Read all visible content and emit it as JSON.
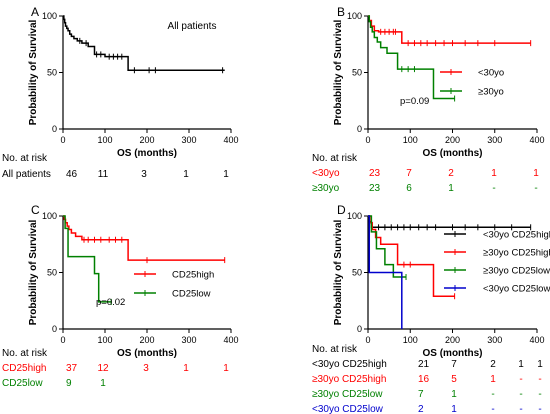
{
  "chart_data": [
    {
      "type": "line",
      "panel_label": "A",
      "title": "All patients",
      "xlabel": "OS (months)",
      "ylabel": "Probability of Survival",
      "xlim": [
        0,
        400
      ],
      "ylim": [
        0,
        100
      ],
      "xticks": [
        0,
        100,
        200,
        300,
        400
      ],
      "yticks": [
        0,
        50,
        100
      ],
      "legend_position": "none",
      "series": [
        {
          "name": "",
          "color": "#000000",
          "x": [
            0,
            2,
            4,
            6,
            9,
            12,
            16,
            20,
            26,
            34,
            45,
            60,
            75,
            100,
            155,
            385
          ],
          "y": [
            100,
            97,
            94,
            91,
            89,
            87,
            84,
            82,
            80,
            78,
            76,
            73,
            66,
            64,
            52,
            52
          ],
          "censored_x": [
            40,
            55,
            80,
            90,
            110,
            120,
            130,
            140,
            170,
            205,
            220,
            380
          ]
        }
      ],
      "risk_table": {
        "header": "No. at risk",
        "rows": [
          {
            "label": "All patients",
            "color": "#000000",
            "values": [
              "46",
              "11",
              "3",
              "1",
              "1"
            ]
          }
        ]
      }
    },
    {
      "type": "line",
      "panel_label": "B",
      "xlabel": "OS (months)",
      "ylabel": "Probability of Survival",
      "xlim": [
        0,
        400
      ],
      "ylim": [
        0,
        100
      ],
      "xticks": [
        0,
        100,
        200,
        300,
        400
      ],
      "yticks": [
        0,
        50,
        100
      ],
      "annotation": "p=0.09",
      "legend_position": "right",
      "series": [
        {
          "name": "<30yo",
          "color": "#ff0000",
          "x": [
            0,
            3,
            8,
            15,
            25,
            80,
            385
          ],
          "y": [
            100,
            96,
            91,
            87,
            86,
            76,
            76
          ],
          "censored_x": [
            30,
            40,
            50,
            60,
            65,
            95,
            110,
            125,
            140,
            160,
            180,
            200,
            230,
            260,
            300,
            385
          ]
        },
        {
          "name": "≥30yo",
          "color": "#008000",
          "x": [
            0,
            3,
            6,
            10,
            15,
            22,
            30,
            45,
            70,
            155,
            205
          ],
          "y": [
            100,
            95,
            90,
            86,
            81,
            77,
            72,
            67,
            53,
            27,
            27
          ],
          "censored_x": [
            80,
            95,
            110,
            205
          ]
        }
      ],
      "risk_table": {
        "header": "No. at risk",
        "rows": [
          {
            "label": "<30yo",
            "color": "#ff0000",
            "values": [
              "23",
              "7",
              "2",
              "1",
              "1"
            ]
          },
          {
            "label": "≥30yo",
            "color": "#008000",
            "values": [
              "23",
              "6",
              "1",
              "-",
              "-"
            ]
          }
        ]
      }
    },
    {
      "type": "line",
      "panel_label": "C",
      "xlabel": "OS (months)",
      "ylabel": "Probability of Survival",
      "xlim": [
        0,
        400
      ],
      "ylim": [
        0,
        100
      ],
      "xticks": [
        0,
        100,
        200,
        300,
        400
      ],
      "yticks": [
        0,
        50,
        100
      ],
      "annotation": "p=0.02",
      "legend_position": "right",
      "series": [
        {
          "name": "CD25high",
          "color": "#ff0000",
          "x": [
            0,
            3,
            6,
            10,
            14,
            20,
            30,
            45,
            155,
            385
          ],
          "y": [
            100,
            97,
            94,
            91,
            88,
            85,
            82,
            79,
            61,
            61
          ],
          "censored_x": [
            50,
            60,
            75,
            90,
            110,
            125,
            140,
            200,
            385
          ]
        },
        {
          "name": "CD25low",
          "color": "#008000",
          "x": [
            0,
            5,
            12,
            75,
            85,
            115
          ],
          "y": [
            100,
            89,
            64,
            49,
            24,
            24
          ],
          "censored_x": [
            115
          ]
        }
      ],
      "risk_table": {
        "header": "No. at risk",
        "rows": [
          {
            "label": "CD25high",
            "color": "#ff0000",
            "values": [
              "37",
              "12",
              "3",
              "1",
              "1"
            ]
          },
          {
            "label": "CD25low",
            "color": "#008000",
            "values": [
              "9",
              "1",
              "",
              "",
              ""
            ]
          }
        ]
      }
    },
    {
      "type": "line",
      "panel_label": "D",
      "xlabel": "OS (months)",
      "ylabel": "Probability of Survival",
      "xlim": [
        0,
        400
      ],
      "ylim": [
        0,
        100
      ],
      "xticks": [
        0,
        100,
        200,
        300,
        400
      ],
      "yticks": [
        0,
        50,
        100
      ],
      "legend_position": "right",
      "series": [
        {
          "name": "<30yo CD25high",
          "color": "#000000",
          "x": [
            0,
            3,
            8,
            15,
            385
          ],
          "y": [
            100,
            95,
            90,
            90,
            90
          ],
          "censored_x": [
            25,
            40,
            55,
            70,
            85,
            100,
            120,
            140,
            160,
            200,
            230,
            260,
            300,
            340,
            385
          ]
        },
        {
          "name": "≥30yo CD25high",
          "color": "#ff0000",
          "x": [
            0,
            4,
            10,
            18,
            30,
            70,
            155,
            205
          ],
          "y": [
            100,
            94,
            88,
            81,
            75,
            57,
            29,
            29
          ],
          "censored_x": [
            85,
            100,
            205
          ]
        },
        {
          "name": "≥30yo CD25low",
          "color": "#008000",
          "x": [
            0,
            8,
            20,
            40,
            60,
            90
          ],
          "y": [
            100,
            86,
            71,
            57,
            46,
            46
          ],
          "censored_x": [
            90
          ]
        },
        {
          "name": "<30yo CD25low",
          "color": "#0000cc",
          "x": [
            0,
            3,
            80,
            80
          ],
          "y": [
            100,
            50,
            50,
            0
          ],
          "censored_x": []
        }
      ],
      "risk_table": {
        "header": "No. at risk",
        "rows": [
          {
            "label": "<30yo CD25high",
            "color": "#000000",
            "values": [
              "21",
              "7",
              "2",
              "1",
              "1"
            ]
          },
          {
            "label": "≥30yo CD25high",
            "color": "#ff0000",
            "values": [
              "16",
              "5",
              "1",
              "-",
              "-"
            ]
          },
          {
            "label": "≥30yo CD25low",
            "color": "#008000",
            "values": [
              "7",
              "1",
              "-",
              "-",
              "-"
            ]
          },
          {
            "label": "<30yo CD25low",
            "color": "#0000cc",
            "values": [
              "2",
              "1",
              "-",
              "-",
              "-"
            ]
          }
        ]
      }
    }
  ]
}
